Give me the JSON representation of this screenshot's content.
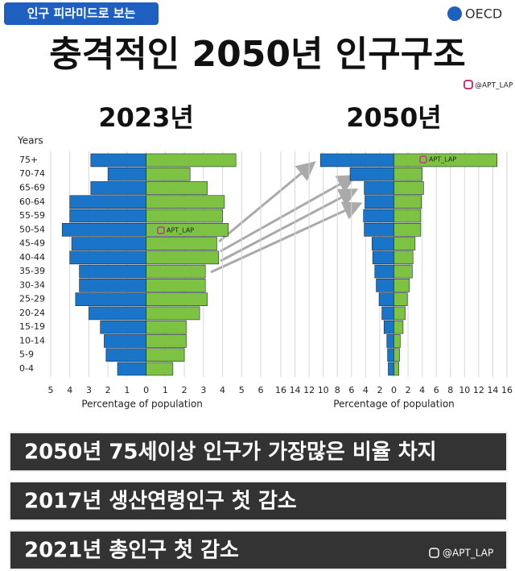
{
  "header": {
    "badge": "인구 피라미드로 보는",
    "logo": "OECD",
    "title": "충격적인 2050년 인구구조",
    "credit": "@APT_LAP"
  },
  "chart_data": [
    {
      "type": "pyramid",
      "title": "2023년",
      "ylabel": "Years",
      "xlabel": "Percentage of population",
      "watermark": "APT_LAP",
      "categories": [
        "0-4",
        "5-9",
        "10-14",
        "15-19",
        "20-24",
        "25-29",
        "30-34",
        "35-39",
        "40-44",
        "45-49",
        "50-54",
        "55-59",
        "60-64",
        "65-69",
        "70-74",
        "75+"
      ],
      "series": [
        {
          "color": "#1a74c8",
          "values": [
            1.5,
            2.1,
            2.2,
            2.4,
            3.0,
            3.7,
            3.5,
            3.5,
            4.0,
            3.9,
            4.4,
            4.0,
            4.0,
            2.9,
            2.0,
            2.9
          ]
        },
        {
          "color": "#7dc243",
          "values": [
            1.4,
            2.0,
            2.1,
            2.1,
            2.8,
            3.2,
            3.1,
            3.1,
            3.8,
            3.7,
            4.3,
            4.0,
            4.1,
            3.2,
            2.3,
            4.7
          ]
        }
      ],
      "xlim": [
        -5,
        6
      ],
      "xticks": [
        {
          "value": -5,
          "label": "5"
        },
        {
          "value": -4,
          "label": "4"
        },
        {
          "value": -3,
          "label": "3"
        },
        {
          "value": -2,
          "label": "2"
        },
        {
          "value": -1,
          "label": "1"
        },
        0,
        1,
        2,
        3,
        4,
        5,
        6
      ],
      "grid": true
    },
    {
      "type": "pyramid",
      "title": "2050년",
      "xlabel": "Percentage of population",
      "watermark": "APT_LAP",
      "categories": [
        "0-4",
        "5-9",
        "10-14",
        "15-19",
        "20-24",
        "25-29",
        "30-34",
        "35-39",
        "40-44",
        "45-49",
        "50-54",
        "55-59",
        "60-64",
        "65-69",
        "70-74",
        "75+"
      ],
      "series": [
        {
          "color": "#1a74c8",
          "values": [
            0.8,
            0.9,
            1.0,
            1.4,
            1.7,
            2.1,
            2.5,
            2.7,
            3.0,
            3.1,
            4.2,
            4.3,
            4.1,
            4.2,
            6.2,
            10.4
          ]
        },
        {
          "color": "#7dc243",
          "values": [
            0.7,
            0.8,
            0.9,
            1.3,
            1.6,
            1.9,
            2.2,
            2.6,
            2.7,
            3.0,
            3.8,
            3.8,
            3.9,
            4.2,
            4.0,
            14.6
          ]
        }
      ],
      "xlim": [
        -16,
        16
      ],
      "xticks": [
        {
          "value": -16,
          "label": "16"
        },
        {
          "value": -14,
          "label": "14"
        },
        {
          "value": -12,
          "label": "12"
        },
        {
          "value": -10,
          "label": "10"
        },
        {
          "value": -8,
          "label": "8"
        },
        {
          "value": -6,
          "label": "6"
        },
        {
          "value": -4,
          "label": "4"
        },
        {
          "value": -2,
          "label": "2"
        },
        0,
        2,
        4,
        6,
        8,
        10,
        12,
        14,
        16
      ],
      "grid": true
    }
  ],
  "notes": [
    "2050년 75세이상 인구가 가장많은 비율 차지",
    "2017년 생산연령인구 첫 감소",
    "2021년 총인구 첫 감소"
  ],
  "footer_credit": "@APT_LAP"
}
